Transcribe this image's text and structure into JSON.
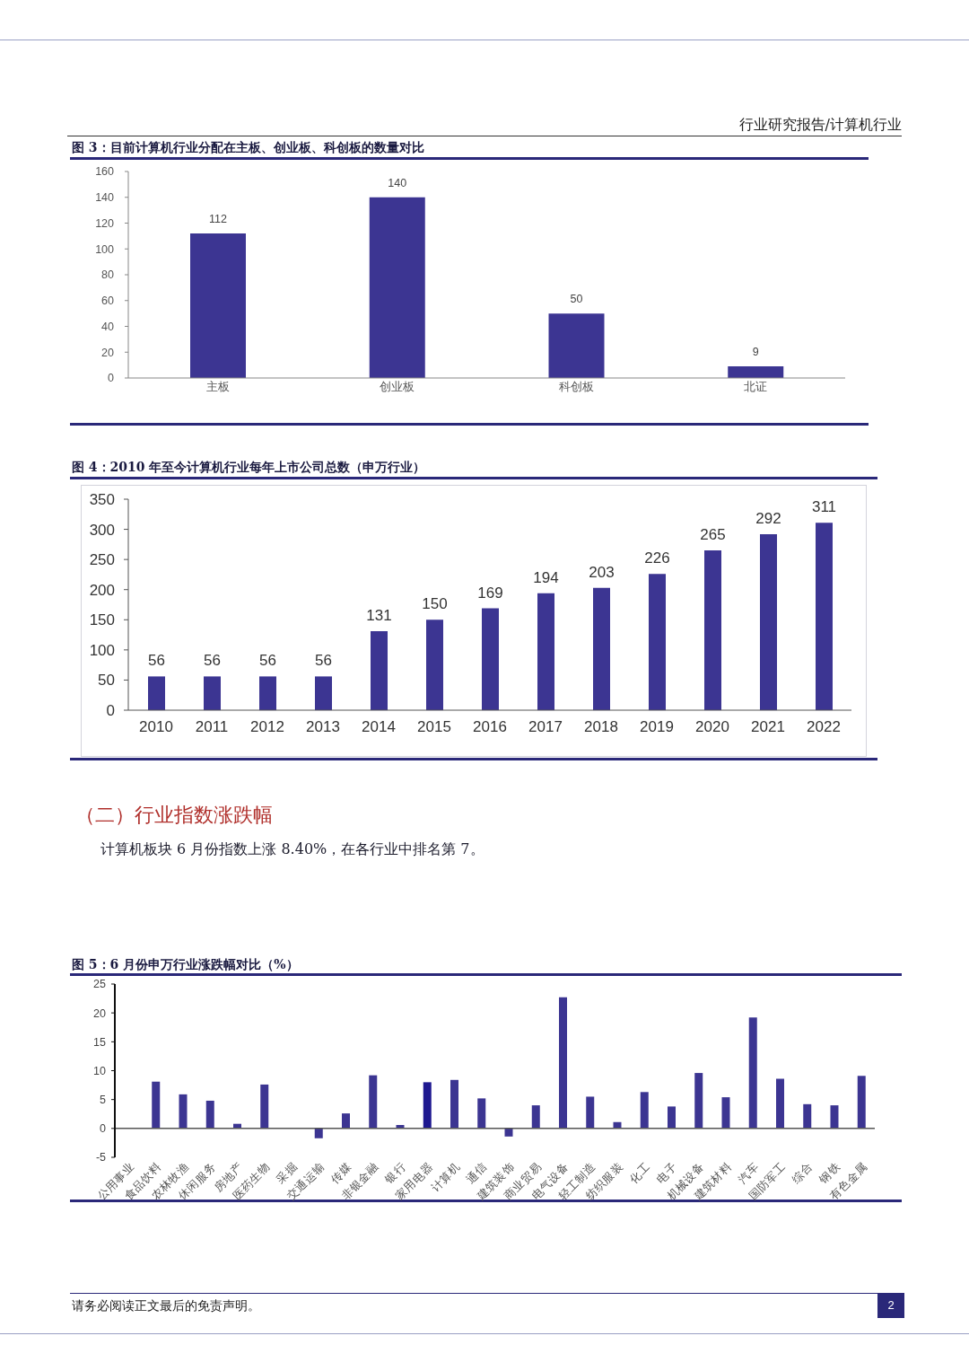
{
  "chart_data": [
    {
      "type": "other",
      "annotations": [
        "行业研究报告/计算机行业"
      ]
    },
    {
      "type": "bar",
      "title": "图 3：目前计算机行业分配在主板、创业板、科创板的数量对比",
      "categories": [
        "主板",
        "创业板",
        "科创板",
        "北证"
      ],
      "values": [
        112,
        140,
        50,
        9
      ],
      "color": "#3c3592",
      "ylim": [
        0,
        160
      ],
      "yticks": [
        0,
        20,
        40,
        60,
        80,
        100,
        120,
        140,
        160
      ],
      "data_labels": true
    },
    {
      "type": "bar",
      "title": "图 4：2010 年至今计算机行业每年上市公司总数（申万行业）",
      "categories": [
        "2010",
        "2011",
        "2012",
        "2013",
        "2014",
        "2015",
        "2016",
        "2017",
        "2018",
        "2019",
        "2020",
        "2021",
        "2022"
      ],
      "values": [
        56,
        56,
        56,
        56,
        131,
        150,
        169,
        194,
        203,
        226,
        265,
        292,
        311
      ],
      "color": "#3c3592",
      "ylim": [
        0,
        350
      ],
      "yticks": [
        0,
        50,
        100,
        150,
        200,
        250,
        300,
        350
      ],
      "data_labels": true
    },
    {
      "type": "other",
      "title": "（二）行业指数涨跌幅",
      "annotations": [
        "计算机板块 6 月份指数上涨 8.40%，在各行业中排名第 7。"
      ]
    },
    {
      "type": "bar",
      "title": "图 5：6 月份申万行业涨跌幅对比（%）",
      "categories": [
        "公用事业",
        "食品饮料",
        "农林牧渔",
        "休闲服务",
        "房地产",
        "医药生物",
        "采掘",
        "交通运输",
        "传媒",
        "非银金融",
        "银行",
        "家用电器",
        "计算机",
        "通信",
        "建筑装饰",
        "商业贸易",
        "电气设备",
        "轻工制造",
        "纺织服装",
        "化工",
        "电子",
        "机械设备",
        "建筑材料",
        "汽车",
        "国防军工",
        "综合",
        "钢铁",
        "有色金属"
      ],
      "values": [
        0,
        8.1,
        5.9,
        4.8,
        0.8,
        7.6,
        0,
        -1.7,
        2.6,
        9.2,
        0.6,
        8.0,
        8.4,
        5.2,
        -1.4,
        4.0,
        22.7,
        5.5,
        1.1,
        6.3,
        3.8,
        9.6,
        5.4,
        19.2,
        8.6,
        4.2,
        4.0,
        9.1
      ],
      "colors": [
        "#3c3592",
        "#3c3592",
        "#3c3592",
        "#3c3592",
        "#3c3592",
        "#3c3592",
        "#3c3592",
        "#3c3592",
        "#3c3592",
        "#3c3592",
        "#3c3592",
        "#1e1890",
        "#3c3592",
        "#3c3592",
        "#3c3592",
        "#3c3592",
        "#3c3592",
        "#3c3592",
        "#3c3592",
        "#3c3592",
        "#3c3592",
        "#3c3592",
        "#3c3592",
        "#3c3592",
        "#3c3592",
        "#3c3592",
        "#3c3592",
        "#3c3592"
      ],
      "ylim": [
        -5,
        25
      ],
      "yticks": [
        -5,
        0,
        5,
        10,
        15,
        20,
        25
      ]
    },
    {
      "type": "other",
      "annotations": [
        "请务必阅读正文最后的免责声明。",
        "2"
      ]
    }
  ]
}
